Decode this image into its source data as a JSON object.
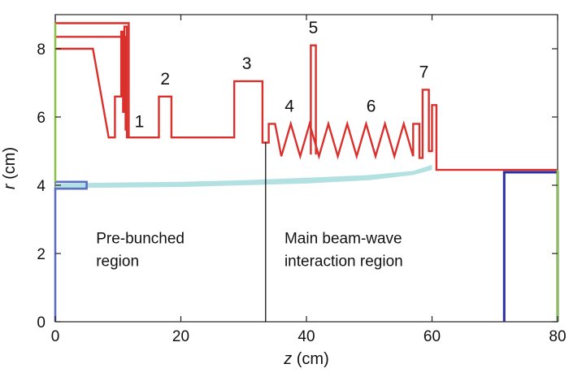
{
  "chart_data": {
    "type": "line",
    "xlabel_var": "z",
    "xlabel_unit": " (cm)",
    "ylabel_var": "r",
    "ylabel_unit": " (cm)",
    "xlim": [
      0,
      80
    ],
    "ylim": [
      0,
      9
    ],
    "x_ticks": [
      0,
      20,
      40,
      60,
      80
    ],
    "y_ticks": [
      0,
      2,
      4,
      6,
      8
    ],
    "colors": {
      "cavity": "#d9302c",
      "collector": "#2b2fa0",
      "input_port": "#5b6fc4",
      "beam": "#a6dcdc",
      "left_wall": "#8bc34a",
      "divider": "#000000"
    },
    "series": [
      {
        "role": "cavity-wall",
        "points": [
          [
            0,
            8
          ],
          [
            6,
            8
          ],
          [
            8.5,
            5.4
          ],
          [
            9.5,
            5.4
          ],
          [
            9.5,
            6.6
          ],
          [
            10.5,
            6.6
          ],
          [
            10.5,
            8.5
          ],
          [
            10.8,
            8.5
          ],
          [
            10.8,
            6.15
          ],
          [
            11,
            6.15
          ],
          [
            11,
            8.65
          ],
          [
            11.4,
            8.65
          ],
          [
            11.4,
            5.4
          ],
          [
            16.5,
            5.4
          ],
          [
            16.5,
            6.6
          ],
          [
            18.5,
            6.6
          ],
          [
            18.5,
            5.4
          ],
          [
            28.5,
            5.4
          ],
          [
            28.5,
            7.05
          ],
          [
            33,
            7.05
          ],
          [
            33,
            5.25
          ],
          [
            34,
            5.25
          ],
          [
            34,
            5.8
          ],
          [
            35,
            5.8
          ],
          [
            36,
            4.85
          ],
          [
            37.5,
            5.8
          ],
          [
            39,
            4.85
          ],
          [
            40.5,
            5.8
          ],
          [
            42,
            4.85
          ],
          [
            43.5,
            5.8
          ],
          [
            45,
            4.85
          ],
          [
            46.5,
            5.8
          ],
          [
            48,
            4.85
          ],
          [
            49.5,
            5.8
          ],
          [
            51,
            4.85
          ],
          [
            52.5,
            5.8
          ],
          [
            54,
            4.85
          ],
          [
            55.5,
            5.8
          ],
          [
            57,
            4.85
          ],
          [
            57,
            5.8
          ],
          [
            58,
            5.8
          ],
          [
            58,
            4.8
          ],
          [
            58.5,
            4.8
          ],
          [
            58.5,
            6.8
          ],
          [
            59.5,
            6.8
          ],
          [
            59.5,
            5
          ],
          [
            60,
            5
          ],
          [
            60,
            6.35
          ],
          [
            60.7,
            6.35
          ],
          [
            60.7,
            4.45
          ],
          [
            80,
            4.45
          ]
        ]
      },
      {
        "role": "cavity-wall-outer-1",
        "points": [
          [
            0,
            8.35
          ],
          [
            11.2,
            8.35
          ],
          [
            11.2,
            5.6
          ]
        ]
      },
      {
        "role": "cavity-wall-outer-2",
        "points": [
          [
            0,
            8.75
          ],
          [
            11.7,
            8.75
          ],
          [
            11.7,
            5.4
          ]
        ]
      },
      {
        "role": "cavity-5-stub",
        "points": [
          [
            40.7,
            4.9
          ],
          [
            40.7,
            8.1
          ],
          [
            41.5,
            8.1
          ],
          [
            41.5,
            4.9
          ]
        ]
      },
      {
        "role": "input-port",
        "points": [
          [
            0,
            4.1
          ],
          [
            5,
            4.1
          ],
          [
            5,
            3.9
          ],
          [
            0,
            3.9
          ],
          [
            0,
            0
          ]
        ]
      },
      {
        "role": "collector",
        "points": [
          [
            71.5,
            0
          ],
          [
            71.5,
            4.38
          ],
          [
            80,
            4.38
          ],
          [
            80,
            0
          ]
        ]
      },
      {
        "role": "beam-envelope",
        "lower": [
          [
            0,
            3.92
          ],
          [
            10,
            3.93
          ],
          [
            20,
            3.95
          ],
          [
            30,
            4.0
          ],
          [
            40,
            4.05
          ],
          [
            50,
            4.15
          ],
          [
            57,
            4.3
          ],
          [
            60,
            4.45
          ]
        ],
        "upper": [
          [
            0,
            4.05
          ],
          [
            10,
            4.08
          ],
          [
            20,
            4.1
          ],
          [
            30,
            4.15
          ],
          [
            40,
            4.22
          ],
          [
            50,
            4.3
          ],
          [
            57,
            4.42
          ],
          [
            60,
            4.6
          ]
        ]
      },
      {
        "role": "left-wall-green",
        "points": [
          [
            0,
            4.1
          ],
          [
            0,
            8.75
          ]
        ]
      },
      {
        "role": "right-wall-green",
        "points": [
          [
            80,
            0
          ],
          [
            80,
            4.45
          ]
        ]
      }
    ],
    "divider_x": 33.5,
    "annotations": [
      {
        "text": "1",
        "x": 13.4,
        "y": 5.7
      },
      {
        "text": "2",
        "x": 17.5,
        "y": 6.95
      },
      {
        "text": "3",
        "x": 30.5,
        "y": 7.4
      },
      {
        "text": "4",
        "x": 37.3,
        "y": 6.15
      },
      {
        "text": "5",
        "x": 41.1,
        "y": 8.45
      },
      {
        "text": "6",
        "x": 50.3,
        "y": 6.15
      },
      {
        "text": "7",
        "x": 58.7,
        "y": 7.15
      }
    ],
    "region_labels": [
      {
        "lines": [
          "Pre-bunched",
          "region"
        ],
        "x": 6.5,
        "y": 2.3
      },
      {
        "lines": [
          "Main beam-wave",
          "interaction region"
        ],
        "x": 36.5,
        "y": 2.3
      }
    ]
  }
}
